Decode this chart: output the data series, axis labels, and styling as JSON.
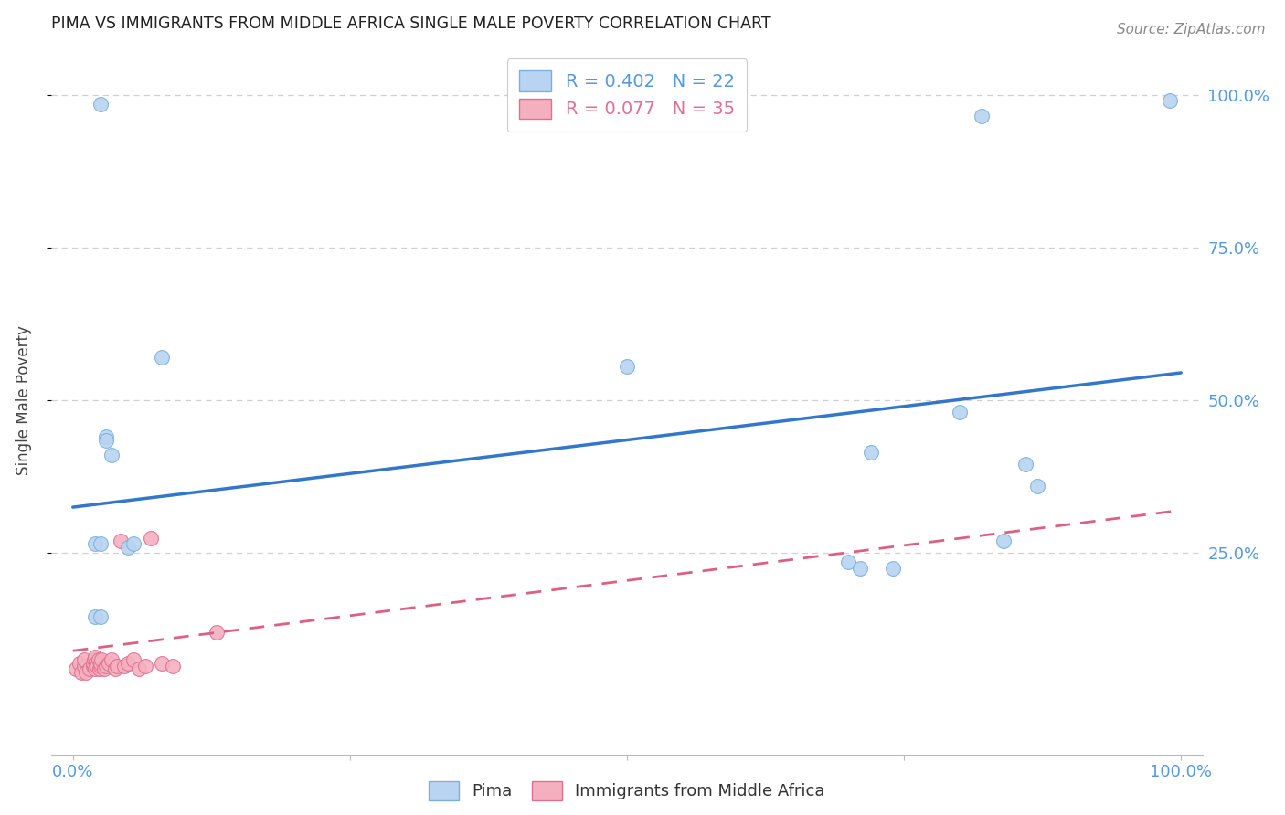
{
  "title": "PIMA VS IMMIGRANTS FROM MIDDLE AFRICA SINGLE MALE POVERTY CORRELATION CHART",
  "source": "Source: ZipAtlas.com",
  "ylabel": "Single Male Poverty",
  "xlim": [
    -0.02,
    1.02
  ],
  "ylim": [
    -0.08,
    1.08
  ],
  "ytick_positions": [
    0.25,
    0.5,
    0.75,
    1.0
  ],
  "ytick_labels": [
    "25.0%",
    "50.0%",
    "75.0%",
    "100.0%"
  ],
  "xtick_positions": [
    0.0,
    1.0
  ],
  "xtick_labels": [
    "0.0%",
    "100.0%"
  ],
  "grid_color": "#d0d0d0",
  "background_color": "#ffffff",
  "pima_color": "#b8d4f0",
  "pima_edge_color": "#7ab0e0",
  "immigrants_color": "#f5b0c0",
  "immigrants_edge_color": "#e07090",
  "pima_R": "0.402",
  "pima_N": "22",
  "immigrants_R": "0.077",
  "immigrants_N": "35",
  "pima_x": [
    0.025,
    0.03,
    0.035,
    0.82,
    0.84,
    0.08,
    0.02,
    0.025,
    0.02,
    0.025,
    0.5,
    0.72,
    0.74,
    0.8,
    0.86,
    0.87,
    0.7,
    0.71,
    0.99,
    0.05,
    0.055,
    0.03
  ],
  "pima_y": [
    0.985,
    0.44,
    0.41,
    0.965,
    0.27,
    0.57,
    0.265,
    0.265,
    0.145,
    0.145,
    0.555,
    0.415,
    0.225,
    0.48,
    0.395,
    0.36,
    0.235,
    0.225,
    0.99,
    0.26,
    0.265,
    0.435
  ],
  "immigrants_x": [
    0.003,
    0.006,
    0.008,
    0.01,
    0.01,
    0.012,
    0.015,
    0.018,
    0.018,
    0.019,
    0.02,
    0.02,
    0.021,
    0.022,
    0.023,
    0.024,
    0.025,
    0.025,
    0.026,
    0.028,
    0.03,
    0.032,
    0.035,
    0.038,
    0.04,
    0.043,
    0.046,
    0.05,
    0.055,
    0.06,
    0.065,
    0.07,
    0.08,
    0.09,
    0.13
  ],
  "immigrants_y": [
    0.06,
    0.07,
    0.055,
    0.065,
    0.075,
    0.055,
    0.06,
    0.065,
    0.07,
    0.075,
    0.06,
    0.08,
    0.07,
    0.065,
    0.075,
    0.06,
    0.065,
    0.07,
    0.075,
    0.06,
    0.065,
    0.07,
    0.075,
    0.06,
    0.065,
    0.27,
    0.065,
    0.07,
    0.075,
    0.06,
    0.065,
    0.275,
    0.07,
    0.065,
    0.12
  ],
  "pima_trend_x": [
    0.0,
    1.0
  ],
  "pima_trend_y": [
    0.325,
    0.545
  ],
  "immigrants_trend_x": [
    0.0,
    1.0
  ],
  "immigrants_trend_y": [
    0.09,
    0.32
  ],
  "legend_pima_label": "Pima",
  "legend_immigrants_label": "Immigrants from Middle Africa",
  "title_color": "#222222",
  "axis_label_color": "#444444",
  "tick_color": "#5599dd",
  "source_color": "#888888",
  "marker_size": 130
}
